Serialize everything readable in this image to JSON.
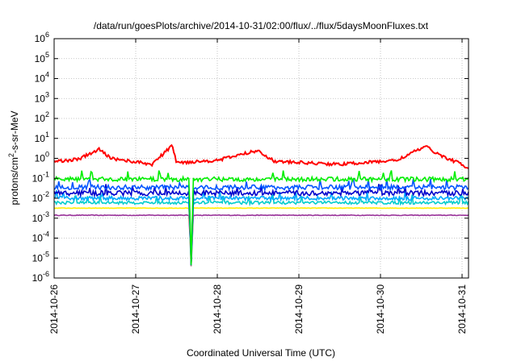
{
  "chart_data": {
    "type": "line",
    "title": "/data/run/goesPlots/archive/2014-10-31/02:00/flux/../flux/5daysMoonFluxes.txt",
    "xlabel": "Coordinated Universal Time (UTC)",
    "ylabel_main": "protons/cm",
    "ylabel_sup": "2",
    "ylabel_rest": "-s-sr-MeV",
    "y_scale": "log",
    "ylim": [
      1e-06,
      1000000.0
    ],
    "xlim": [
      "2014-10-26 00:00",
      "2014-10-31 03:00"
    ],
    "grid": true,
    "legend": "none",
    "x_ticks": [
      "2014-10-26",
      "2014-10-27",
      "2014-10-28",
      "2014-10-29",
      "2014-10-30",
      "2014-10-31"
    ],
    "y_ticks": [
      {
        "base": "10",
        "exp": "-6"
      },
      {
        "base": "10",
        "exp": "-5"
      },
      {
        "base": "10",
        "exp": "-4"
      },
      {
        "base": "10",
        "exp": "-3"
      },
      {
        "base": "10",
        "exp": "-2"
      },
      {
        "base": "10",
        "exp": "-1"
      },
      {
        "base": "10",
        "exp": "0"
      },
      {
        "base": "10",
        "exp": "1"
      },
      {
        "base": "10",
        "exp": "2"
      },
      {
        "base": "10",
        "exp": "3"
      },
      {
        "base": "10",
        "exp": "4"
      },
      {
        "base": "10",
        "exp": "5"
      },
      {
        "base": "10",
        "exp": "6"
      }
    ],
    "series": [
      {
        "color": "#ff0000",
        "base": 0.6,
        "noise": 0.35,
        "anchors": [
          [
            0,
            0.7
          ],
          [
            0.3,
            0.9
          ],
          [
            0.55,
            2.8
          ],
          [
            0.7,
            1.0
          ],
          [
            1.2,
            0.5
          ],
          [
            1.45,
            4.5
          ],
          [
            1.5,
            0.6
          ],
          [
            2.0,
            0.8
          ],
          [
            2.5,
            2.5
          ],
          [
            2.7,
            0.7
          ],
          [
            3.5,
            0.5
          ],
          [
            4.2,
            0.8
          ],
          [
            4.55,
            4.0
          ],
          [
            4.75,
            1.3
          ],
          [
            5.0,
            0.5
          ],
          [
            5.125,
            0.2
          ]
        ]
      },
      {
        "color": "#00ee00",
        "base": 0.09,
        "noise": 0.5
      },
      {
        "color": "#0055ff",
        "base": 0.035,
        "noise": 0.55
      },
      {
        "color": "#0000cc",
        "base": 0.018,
        "noise": 0.6
      },
      {
        "color": "#00aaff",
        "base": 0.01,
        "noise": 0.45
      },
      {
        "color": "#00cccc",
        "base": 0.006,
        "noise": 0.35
      },
      {
        "color": "#ffee00",
        "base": 0.0032,
        "noise": 0.05
      },
      {
        "color": "#993399",
        "base": 0.0014,
        "noise": 0.08
      }
    ],
    "dip": {
      "x": 1.68,
      "min": 3e-06
    }
  }
}
